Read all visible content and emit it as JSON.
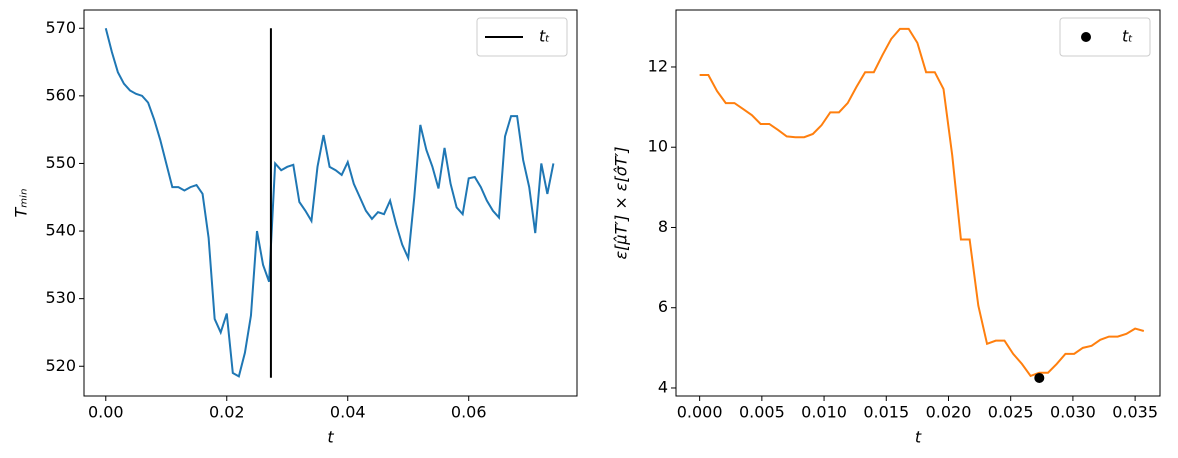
{
  "chart_data": [
    {
      "type": "line",
      "xlabel": "t",
      "ylabel": "Tₘᵢₙ",
      "xlim": [
        -0.0036,
        0.0779
      ],
      "ylim": [
        515.6,
        572.7
      ],
      "xticks": [
        {
          "value": 0,
          "label": "0.00"
        },
        {
          "value": 0.02,
          "label": "0.02"
        },
        {
          "value": 0.04,
          "label": "0.04"
        },
        {
          "value": 0.06,
          "label": "0.06"
        }
      ],
      "yticks": [
        520,
        530,
        540,
        550,
        560,
        570
      ],
      "legend": "upper right",
      "series": [
        {
          "color": "#1f77b4",
          "x": [
            0,
            0.001,
            0.002,
            0.003,
            0.004,
            0.005,
            0.006,
            0.007,
            0.008,
            0.009,
            0.01,
            0.011,
            0.012,
            0.013,
            0.014,
            0.015,
            0.016,
            0.017,
            0.018,
            0.019,
            0.02,
            0.021,
            0.022,
            0.023,
            0.024,
            0.025,
            0.026,
            0.027,
            0.028,
            0.029,
            0.03,
            0.031,
            0.032,
            0.033,
            0.034,
            0.035,
            0.036,
            0.037,
            0.038,
            0.039,
            0.04,
            0.041,
            0.042,
            0.043,
            0.044,
            0.045,
            0.046,
            0.047,
            0.048,
            0.049,
            0.05,
            0.051,
            0.052,
            0.053,
            0.054,
            0.055,
            0.056,
            0.057,
            0.058,
            0.059,
            0.06,
            0.061,
            0.062,
            0.063,
            0.064,
            0.065,
            0.066,
            0.067,
            0.068,
            0.069,
            0.07,
            0.071,
            0.072,
            0.073,
            0.074
          ],
          "values": [
            570,
            566.5,
            563.5,
            561.8,
            560.8,
            560.3,
            560,
            559,
            556.5,
            553.5,
            550,
            546.5,
            546.5,
            546,
            546.5,
            546.8,
            545.5,
            539,
            527,
            525,
            527.8,
            519,
            518.5,
            522,
            527.5,
            540,
            535,
            532.5,
            550,
            549,
            549.5,
            549.8,
            544.3,
            543,
            541.5,
            549.5,
            554.2,
            549.5,
            549,
            548.3,
            550.2,
            547,
            545,
            543,
            541.8,
            542.8,
            542.5,
            544.5,
            541,
            538,
            536,
            545,
            555.7,
            552,
            549.5,
            546.3,
            552.3,
            547,
            543.5,
            542.5,
            547.8,
            548,
            546.5,
            544.5,
            543,
            542,
            554,
            557,
            557,
            550.5,
            546.5,
            539.7,
            550,
            545.5,
            550
          ]
        },
        {
          "name": "tₜ",
          "color": "#000000",
          "x": [
            0.0273,
            0.0273
          ],
          "values": [
            518.3,
            570
          ]
        }
      ]
    },
    {
      "type": "line",
      "xlabel": "t",
      "ylabel": "ε[μ̂T′] × ε[σ̂T′]",
      "xlim": [
        -0.0019,
        0.037
      ],
      "ylim": [
        3.8,
        13.42
      ],
      "xticks": [
        {
          "value": 0,
          "label": "0.000"
        },
        {
          "value": 0.005,
          "label": "0.005"
        },
        {
          "value": 0.01,
          "label": "0.010"
        },
        {
          "value": 0.015,
          "label": "0.015"
        },
        {
          "value": 0.02,
          "label": "0.020"
        },
        {
          "value": 0.025,
          "label": "0.025"
        },
        {
          "value": 0.03,
          "label": "0.030"
        },
        {
          "value": 0.035,
          "label": "0.035"
        }
      ],
      "yticks": [
        4,
        6,
        8,
        10,
        12
      ],
      "legend": "upper right",
      "series": [
        {
          "color": "#ff7f0e",
          "x": [
            0,
            0.0007,
            0.0014,
            0.0021,
            0.0028,
            0.0035,
            0.0042,
            0.0049,
            0.0056,
            0.0063,
            0.007,
            0.0077,
            0.0084,
            0.0091,
            0.0098,
            0.0105,
            0.0112,
            0.0119,
            0.0126,
            0.0133,
            0.014,
            0.0147,
            0.0154,
            0.0161,
            0.0168,
            0.0175,
            0.0182,
            0.0189,
            0.0196,
            0.0203,
            0.021,
            0.0217,
            0.0224,
            0.0231,
            0.0238,
            0.0245,
            0.0252,
            0.0259,
            0.0266,
            0.0273,
            0.028,
            0.0287,
            0.0294,
            0.0301,
            0.0308,
            0.0315,
            0.0322,
            0.0329,
            0.0336,
            0.0343,
            0.035,
            0.0357
          ],
          "values": [
            11.8,
            11.8,
            11.4,
            11.1,
            11.1,
            10.95,
            10.8,
            10.58,
            10.58,
            10.43,
            10.27,
            10.25,
            10.25,
            10.33,
            10.55,
            10.87,
            10.87,
            11.1,
            11.5,
            11.87,
            11.87,
            12.3,
            12.7,
            12.95,
            12.95,
            12.6,
            11.87,
            11.87,
            11.45,
            9.8,
            7.7,
            7.7,
            6.05,
            5.1,
            5.18,
            5.18,
            4.85,
            4.6,
            4.3,
            4.38,
            4.38,
            4.6,
            4.85,
            4.85,
            5.0,
            5.05,
            5.2,
            5.28,
            5.28,
            5.35,
            5.48,
            5.42
          ]
        },
        {
          "name": "tₜ",
          "type": "scatter",
          "color": "#000000",
          "x": [
            0.0273
          ],
          "values": [
            4.25
          ]
        }
      ]
    }
  ]
}
